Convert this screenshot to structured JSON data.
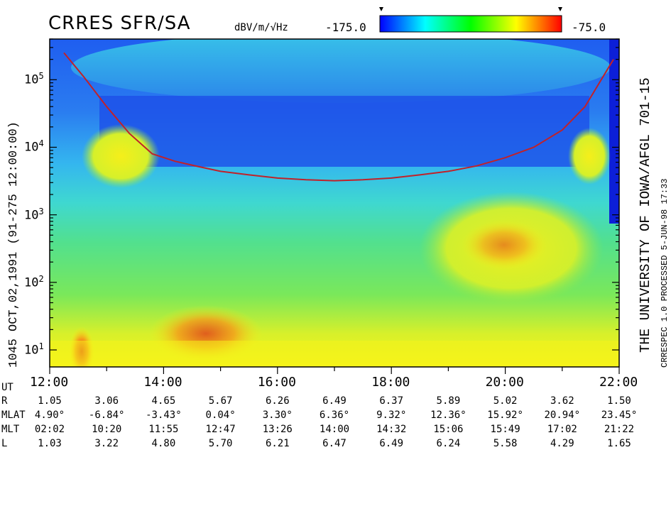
{
  "header": {
    "title": "CRRES SFR/SA",
    "units": "dBV/m/√Hz",
    "scale_min": "-175.0",
    "scale_max": "-75.0"
  },
  "left_label": "1045   OCT,02,1991   (91-275 12:00:00)",
  "right_label": "THE UNIVERSITY OF IOWA/AFGL 701-15",
  "processed_label": "CRRESPEC 1.0   PROCESSED   5-JUN-98   17:33",
  "ephemeris": {
    "rows": [
      {
        "label": "UT",
        "values": [
          "12:00",
          "14:00",
          "16:00",
          "18:00",
          "20:00",
          "22:00"
        ]
      },
      {
        "label": "R",
        "values": [
          "1.05",
          "3.06",
          "4.65",
          "5.67",
          "6.26",
          "6.49",
          "6.37",
          "5.89",
          "5.02",
          "3.62",
          "1.50"
        ]
      },
      {
        "label": "MLAT",
        "values": [
          "4.90°",
          "-6.84°",
          "-3.43°",
          "0.04°",
          "3.30°",
          "6.36°",
          "9.32°",
          "12.36°",
          "15.92°",
          "20.94°",
          "23.45°"
        ]
      },
      {
        "label": "MLT",
        "values": [
          "02:02",
          "10:20",
          "11:55",
          "12:47",
          "13:26",
          "14:00",
          "14:32",
          "15:06",
          "15:49",
          "17:02",
          "21:22"
        ]
      },
      {
        "label": "L",
        "values": [
          "1.03",
          "3.22",
          "4.80",
          "5.70",
          "6.21",
          "6.47",
          "6.49",
          "6.24",
          "5.58",
          "4.29",
          "1.65"
        ]
      }
    ]
  },
  "colors": {
    "plot_background": "#2a6ee6",
    "colorbar_stops": [
      "#0000ff",
      "#00ffff",
      "#00ff00",
      "#ffff00",
      "#ff0000"
    ],
    "trace": "#c0222a"
  },
  "chart_data": {
    "type": "heatmap",
    "title": "CRRES SFR/SA",
    "xlabel": "UT",
    "ylabel": "",
    "x_range": [
      "12:00",
      "22:00"
    ],
    "x_ticks": [
      "12:00",
      "14:00",
      "16:00",
      "18:00",
      "20:00",
      "22:00"
    ],
    "y_scale": "log",
    "y_range": [
      5.6,
      400000
    ],
    "y_ticks": [
      {
        "base": "10",
        "exp": "1"
      },
      {
        "base": "10",
        "exp": "2"
      },
      {
        "base": "10",
        "exp": "3"
      },
      {
        "base": "10",
        "exp": "4"
      },
      {
        "base": "10",
        "exp": "5"
      }
    ],
    "colorbar": {
      "min": -175.0,
      "max": -75.0,
      "units": "dBV/m/√Hz"
    },
    "trace_line": {
      "name": "",
      "x_hours": [
        12.25,
        12.6,
        13.0,
        13.4,
        13.8,
        14.2,
        14.6,
        15.0,
        15.5,
        16.0,
        16.5,
        17.0,
        17.5,
        18.0,
        18.5,
        19.0,
        19.5,
        20.0,
        20.5,
        21.0,
        21.4,
        21.9
      ],
      "y_values": [
        250000,
        110000,
        40000,
        16000,
        8000,
        6200,
        5200,
        4400,
        3900,
        3500,
        3300,
        3200,
        3300,
        3500,
        3900,
        4400,
        5300,
        7000,
        10000,
        18000,
        40000,
        200000
      ]
    }
  }
}
